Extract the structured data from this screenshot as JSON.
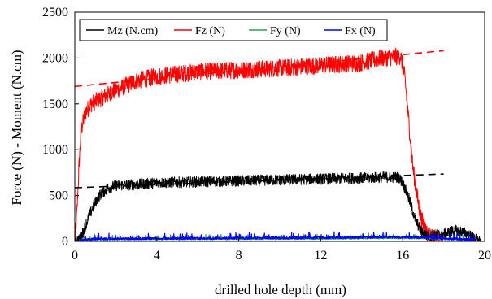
{
  "chart_data": {
    "type": "line",
    "xlabel": "drilled hole depth (mm)",
    "ylabel": "Force (N) - Moment (N.cm)",
    "xlim": [
      0,
      20
    ],
    "ylim": [
      0,
      2500
    ],
    "x_ticks": [
      "0",
      "4",
      "8",
      "12",
      "16",
      "20"
    ],
    "y_ticks": [
      "0",
      "500",
      "1000",
      "1500",
      "2000",
      "2500"
    ],
    "grid": false,
    "legend": {
      "placement": "top-left",
      "layout": "horizontal"
    },
    "series": [
      {
        "name": "Mz (N.cm)",
        "color": "#000000",
        "noise": 60,
        "points": [
          [
            0,
            0
          ],
          [
            0.3,
            40
          ],
          [
            0.6,
            220
          ],
          [
            0.9,
            380
          ],
          [
            1.2,
            500
          ],
          [
            1.6,
            580
          ],
          [
            2,
            610
          ],
          [
            3,
            620
          ],
          [
            4,
            640
          ],
          [
            6,
            650
          ],
          [
            8,
            660
          ],
          [
            10,
            670
          ],
          [
            12,
            680
          ],
          [
            14,
            690
          ],
          [
            15,
            700
          ],
          [
            15.8,
            700
          ],
          [
            16,
            640
          ],
          [
            16.3,
            470
          ],
          [
            16.6,
            250
          ],
          [
            16.9,
            110
          ],
          [
            17.2,
            60
          ],
          [
            18,
            80
          ],
          [
            18.5,
            120
          ],
          [
            19,
            100
          ],
          [
            19.5,
            30
          ],
          [
            19.8,
            0
          ]
        ],
        "trend": [
          [
            0,
            585
          ],
          [
            18,
            735
          ]
        ]
      },
      {
        "name": "Fz (N)",
        "color": "#ff0000",
        "noise": 95,
        "points": [
          [
            0,
            0
          ],
          [
            0.1,
            300
          ],
          [
            0.2,
            800
          ],
          [
            0.3,
            1200
          ],
          [
            0.5,
            1400
          ],
          [
            0.8,
            1500
          ],
          [
            1.2,
            1550
          ],
          [
            2,
            1650
          ],
          [
            3,
            1750
          ],
          [
            4,
            1800
          ],
          [
            6,
            1850
          ],
          [
            8,
            1870
          ],
          [
            10,
            1890
          ],
          [
            12,
            1920
          ],
          [
            14,
            1950
          ],
          [
            15,
            2000
          ],
          [
            15.9,
            2020
          ],
          [
            16.1,
            1800
          ],
          [
            16.3,
            1300
          ],
          [
            16.5,
            800
          ],
          [
            16.7,
            500
          ],
          [
            16.9,
            250
          ],
          [
            17.2,
            80
          ],
          [
            17.6,
            20
          ],
          [
            18,
            0
          ]
        ],
        "trend": [
          [
            0,
            1690
          ],
          [
            18,
            2080
          ]
        ]
      },
      {
        "name": "Fy (N)",
        "color": "#2e9e58",
        "noise": 20,
        "points": [
          [
            0.2,
            0
          ],
          [
            1,
            12
          ],
          [
            4,
            15
          ],
          [
            8,
            18
          ],
          [
            12,
            20
          ],
          [
            16,
            28
          ],
          [
            17,
            25
          ],
          [
            18,
            15
          ],
          [
            19,
            8
          ],
          [
            19.5,
            0
          ]
        ],
        "trend": []
      },
      {
        "name": "Fx (N)",
        "color": "#0000ff",
        "noise": 25,
        "points": [
          [
            0.2,
            0
          ],
          [
            1,
            15
          ],
          [
            4,
            18
          ],
          [
            8,
            22
          ],
          [
            12,
            28
          ],
          [
            16,
            35
          ],
          [
            17,
            30
          ],
          [
            18,
            20
          ],
          [
            19,
            10
          ],
          [
            19.5,
            0
          ]
        ],
        "trend": []
      }
    ]
  }
}
